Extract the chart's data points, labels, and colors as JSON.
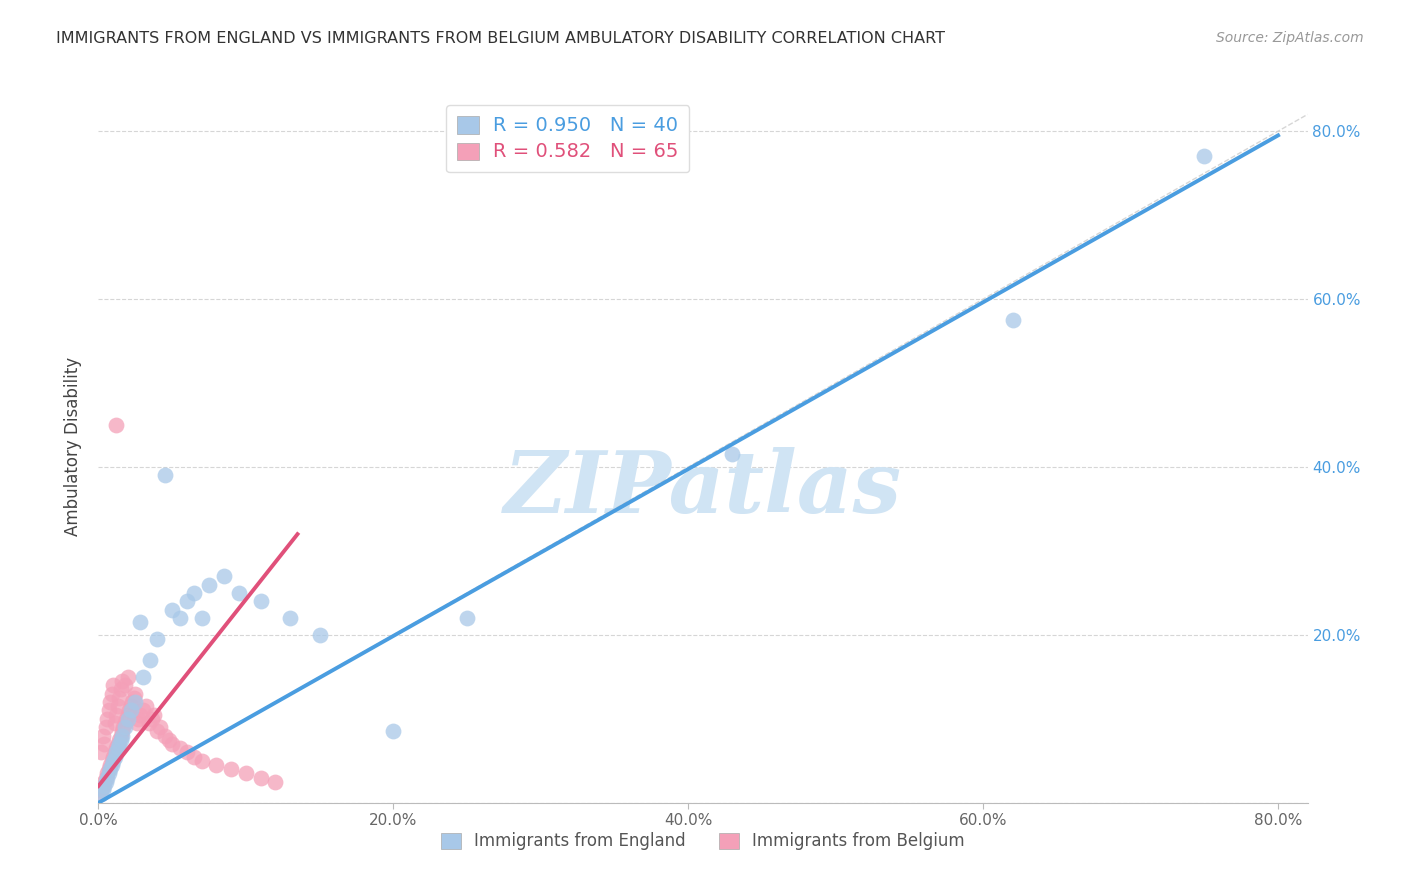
{
  "title": "IMMIGRANTS FROM ENGLAND VS IMMIGRANTS FROM BELGIUM AMBULATORY DISABILITY CORRELATION CHART",
  "source": "Source: ZipAtlas.com",
  "ylabel": "Ambulatory Disability",
  "england_R": 0.95,
  "england_N": 40,
  "belgium_R": 0.582,
  "belgium_N": 65,
  "england_color": "#a8c8e8",
  "belgium_color": "#f4a0b8",
  "england_line_color": "#4a9de0",
  "belgium_line_color": "#e0507a",
  "diagonal_color": "#cccccc",
  "grid_color": "#cccccc",
  "watermark": "ZIPatlas",
  "watermark_color": "#d0e4f4",
  "xlim": [
    0.0,
    0.82
  ],
  "ylim": [
    0.0,
    0.85
  ],
  "tick_vals": [
    0.0,
    0.2,
    0.4,
    0.6,
    0.8
  ],
  "england_x": [
    0.002,
    0.003,
    0.004,
    0.005,
    0.006,
    0.007,
    0.008,
    0.009,
    0.01,
    0.011,
    0.012,
    0.013,
    0.014,
    0.015,
    0.016,
    0.018,
    0.02,
    0.022,
    0.025,
    0.03,
    0.035,
    0.04,
    0.05,
    0.055,
    0.06,
    0.065,
    0.07,
    0.075,
    0.085,
    0.095,
    0.11,
    0.13,
    0.15,
    0.2,
    0.25,
    0.43,
    0.62,
    0.75,
    0.045,
    0.028
  ],
  "england_y": [
    0.01,
    0.015,
    0.02,
    0.025,
    0.03,
    0.035,
    0.04,
    0.045,
    0.05,
    0.055,
    0.06,
    0.065,
    0.07,
    0.075,
    0.08,
    0.09,
    0.1,
    0.11,
    0.12,
    0.15,
    0.17,
    0.195,
    0.23,
    0.22,
    0.24,
    0.25,
    0.22,
    0.26,
    0.27,
    0.25,
    0.24,
    0.22,
    0.2,
    0.085,
    0.22,
    0.415,
    0.575,
    0.77,
    0.39,
    0.215
  ],
  "belgium_x": [
    0.001,
    0.002,
    0.002,
    0.003,
    0.003,
    0.004,
    0.004,
    0.005,
    0.005,
    0.006,
    0.006,
    0.007,
    0.007,
    0.008,
    0.008,
    0.009,
    0.009,
    0.01,
    0.01,
    0.011,
    0.011,
    0.012,
    0.012,
    0.013,
    0.013,
    0.014,
    0.014,
    0.015,
    0.015,
    0.016,
    0.016,
    0.017,
    0.018,
    0.018,
    0.019,
    0.02,
    0.02,
    0.021,
    0.022,
    0.023,
    0.024,
    0.025,
    0.026,
    0.027,
    0.028,
    0.03,
    0.032,
    0.034,
    0.036,
    0.038,
    0.04,
    0.042,
    0.045,
    0.048,
    0.05,
    0.055,
    0.06,
    0.065,
    0.07,
    0.08,
    0.09,
    0.1,
    0.11,
    0.12,
    0.012
  ],
  "belgium_y": [
    0.01,
    0.015,
    0.06,
    0.02,
    0.08,
    0.025,
    0.07,
    0.03,
    0.09,
    0.035,
    0.1,
    0.04,
    0.11,
    0.045,
    0.12,
    0.05,
    0.13,
    0.055,
    0.14,
    0.06,
    0.095,
    0.065,
    0.105,
    0.07,
    0.115,
    0.075,
    0.125,
    0.08,
    0.135,
    0.085,
    0.145,
    0.09,
    0.095,
    0.14,
    0.1,
    0.105,
    0.15,
    0.11,
    0.115,
    0.12,
    0.125,
    0.13,
    0.095,
    0.1,
    0.105,
    0.11,
    0.115,
    0.095,
    0.1,
    0.105,
    0.085,
    0.09,
    0.08,
    0.075,
    0.07,
    0.065,
    0.06,
    0.055,
    0.05,
    0.045,
    0.04,
    0.035,
    0.03,
    0.025,
    0.45
  ],
  "england_line_x": [
    0.0,
    0.8
  ],
  "england_line_y": [
    0.0,
    0.795
  ],
  "belgium_line_x": [
    0.0,
    0.135
  ],
  "belgium_line_y": [
    0.02,
    0.32
  ]
}
